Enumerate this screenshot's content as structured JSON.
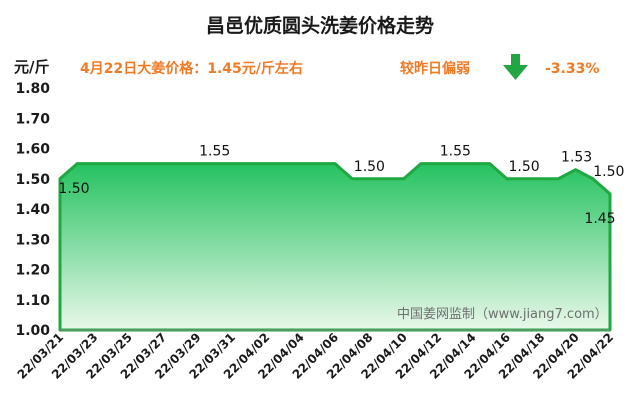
{
  "chart_data": {
    "type": "area",
    "title": "昌邑优质圆头洗姜价格走势",
    "unit_label": "元/斤",
    "headline": "4月22日大姜价格：1.45元/斤左右",
    "change_label": "较昨日偏弱",
    "change_value": "-3.33%",
    "watermark": "中国姜网监制（www.jiang7.com）",
    "ylim": [
      1.0,
      1.8
    ],
    "yticks": [
      "1.00",
      "1.10",
      "1.20",
      "1.30",
      "1.40",
      "1.50",
      "1.60",
      "1.70",
      "1.80"
    ],
    "grid": false,
    "legend": "none",
    "dates": [
      "22/03/21",
      "22/03/22",
      "22/03/23",
      "22/03/24",
      "22/03/25",
      "22/03/26",
      "22/03/27",
      "22/03/28",
      "22/03/29",
      "22/03/30",
      "22/03/31",
      "22/04/01",
      "22/04/02",
      "22/04/03",
      "22/04/04",
      "22/04/05",
      "22/04/06",
      "22/04/07",
      "22/04/08",
      "22/04/09",
      "22/04/10",
      "22/04/11",
      "22/04/12",
      "22/04/13",
      "22/04/14",
      "22/04/15",
      "22/04/16",
      "22/04/17",
      "22/04/18",
      "22/04/19",
      "22/04/20",
      "22/04/21",
      "22/04/22"
    ],
    "values": [
      1.5,
      1.55,
      1.55,
      1.55,
      1.55,
      1.55,
      1.55,
      1.55,
      1.55,
      1.55,
      1.55,
      1.55,
      1.55,
      1.55,
      1.55,
      1.55,
      1.55,
      1.5,
      1.5,
      1.5,
      1.5,
      1.55,
      1.55,
      1.55,
      1.55,
      1.55,
      1.5,
      1.5,
      1.5,
      1.5,
      1.53,
      1.5,
      1.45
    ],
    "xtick_labels": [
      "22/03/21",
      "22/03/23",
      "22/03/25",
      "22/03/27",
      "22/03/29",
      "22/03/31",
      "22/04/02",
      "22/04/04",
      "22/04/06",
      "22/04/08",
      "22/04/10",
      "22/04/12",
      "22/04/14",
      "22/04/16",
      "22/04/18",
      "22/04/20",
      "22/04/22"
    ],
    "data_labels": [
      {
        "date": "22/03/21",
        "text": "1.50"
      },
      {
        "date": "22/03/30",
        "text": "1.55"
      },
      {
        "date": "22/04/08",
        "text": "1.50"
      },
      {
        "date": "22/04/13",
        "text": "1.55"
      },
      {
        "date": "22/04/17",
        "text": "1.50"
      },
      {
        "date": "22/04/20",
        "text": "1.53"
      },
      {
        "date": "22/04/21",
        "text": "1.50"
      },
      {
        "date": "22/04/22",
        "text": "1.45"
      }
    ],
    "colors": {
      "line": "#1fa83f",
      "fill_top": "#25c260",
      "fill_bottom": "#e9f8ea",
      "highlight": "#f07b27",
      "arrow": "#21a742"
    }
  }
}
